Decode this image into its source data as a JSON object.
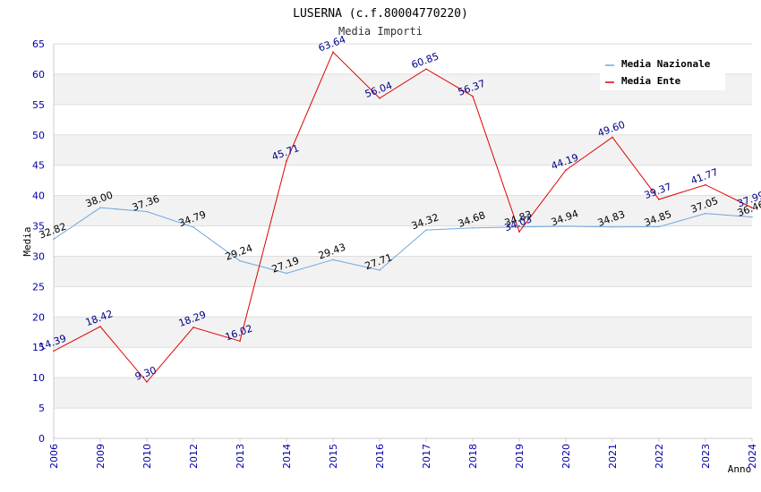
{
  "chart_data": {
    "type": "line",
    "title": "LUSERNA (c.f.80004770220)",
    "subtitle": "Media Importi",
    "xlabel": "Anno",
    "ylabel": "Media",
    "ylim": [
      0,
      65
    ],
    "ytick_step": 5,
    "grid": true,
    "legend_position": "top-right",
    "categories": [
      "2006",
      "2009",
      "2010",
      "2012",
      "2013",
      "2014",
      "2015",
      "2016",
      "2017",
      "2018",
      "2019",
      "2020",
      "2021",
      "2022",
      "2023",
      "2024"
    ],
    "series": [
      {
        "name": "Media Nazionale",
        "color": "#6fa8dc",
        "values": [
          32.82,
          38.0,
          37.36,
          34.79,
          29.24,
          27.19,
          29.43,
          27.71,
          34.32,
          34.68,
          34.83,
          34.94,
          34.83,
          34.85,
          37.05,
          36.46
        ],
        "labels": [
          "32.82",
          "38.00",
          "37.36",
          "34.79",
          "29.24",
          "27.19",
          "29.43",
          "27.71",
          "34.32",
          "34.68",
          "34.83",
          "34.94",
          "34.83",
          "34.85",
          "37.05",
          "36.46"
        ]
      },
      {
        "name": "Media Ente",
        "color": "#e00000",
        "values": [
          14.39,
          18.42,
          9.3,
          18.29,
          16.02,
          45.71,
          63.64,
          56.04,
          60.85,
          56.37,
          34.03,
          44.19,
          49.6,
          39.37,
          41.77,
          37.99
        ],
        "labels": [
          "14.39",
          "18.42",
          "9.30",
          "18.29",
          "16.02",
          "45.71",
          "63.64",
          "56.04",
          "60.85",
          "56.37",
          "34.03",
          "44.19",
          "49.60",
          "39.37",
          "41.77",
          "37.99"
        ]
      }
    ]
  }
}
